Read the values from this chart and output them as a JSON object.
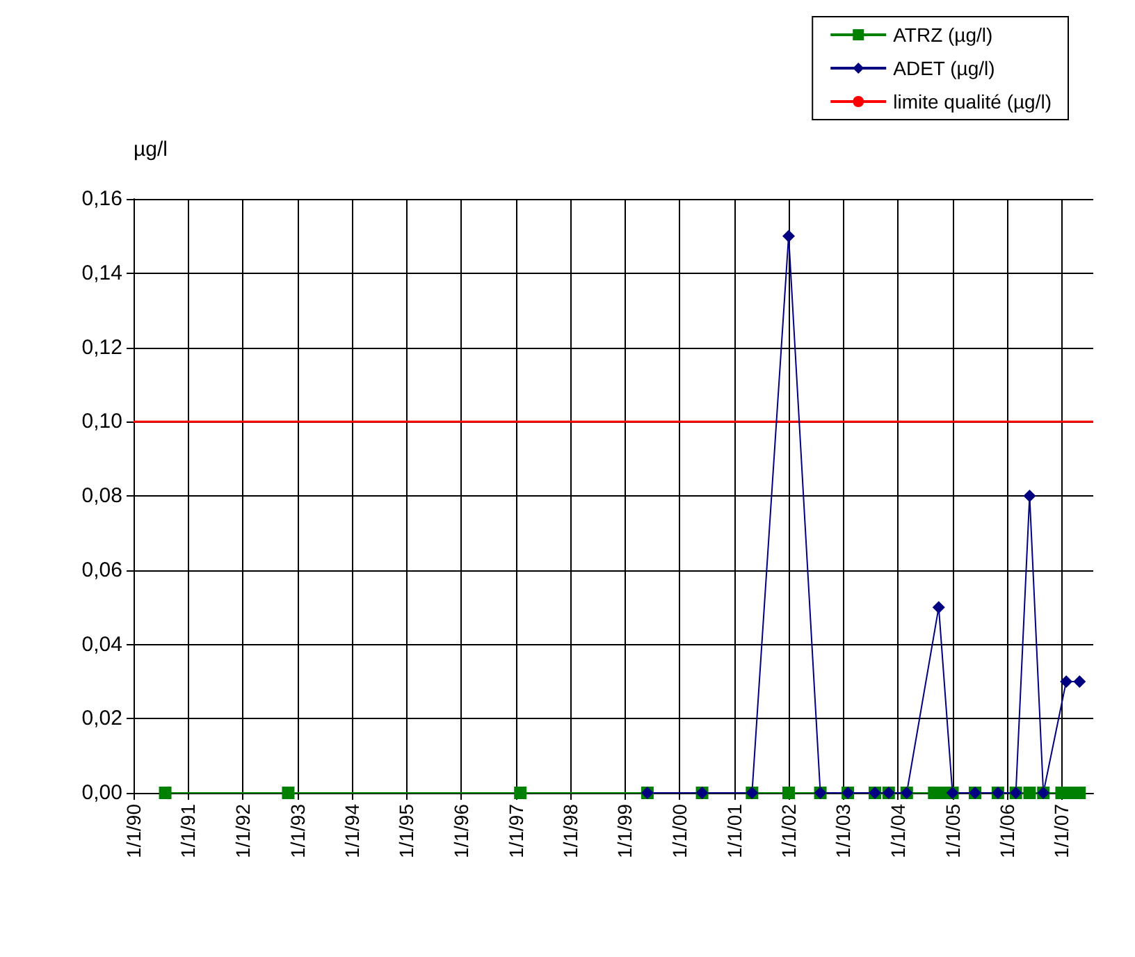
{
  "chart_data": {
    "type": "line",
    "ylabel": "µg/l",
    "xlim": [
      "1990-01-01",
      "2007-08-01"
    ],
    "xticks": [
      {
        "value": "1990-01-01",
        "label": "1/1/90"
      },
      {
        "value": "1991-01-01",
        "label": "1/1/91"
      },
      {
        "value": "1992-01-01",
        "label": "1/1/92"
      },
      {
        "value": "1993-01-01",
        "label": "1/1/93"
      },
      {
        "value": "1994-01-01",
        "label": "1/1/94"
      },
      {
        "value": "1995-01-01",
        "label": "1/1/95"
      },
      {
        "value": "1996-01-01",
        "label": "1/1/96"
      },
      {
        "value": "1997-01-01",
        "label": "1/1/97"
      },
      {
        "value": "1998-01-01",
        "label": "1/1/98"
      },
      {
        "value": "1999-01-01",
        "label": "1/1/99"
      },
      {
        "value": "2000-01-01",
        "label": "1/1/00"
      },
      {
        "value": "2001-01-01",
        "label": "1/1/01"
      },
      {
        "value": "2002-01-01",
        "label": "1/1/02"
      },
      {
        "value": "2003-01-01",
        "label": "1/1/03"
      },
      {
        "value": "2004-01-01",
        "label": "1/1/04"
      },
      {
        "value": "2005-01-01",
        "label": "1/1/05"
      },
      {
        "value": "2006-01-01",
        "label": "1/1/06"
      },
      {
        "value": "2007-01-01",
        "label": "1/1/07"
      }
    ],
    "ylim": [
      0,
      0.16
    ],
    "yticks": [
      {
        "value": 0,
        "label": "0,00"
      },
      {
        "value": 0.02,
        "label": "0,02"
      },
      {
        "value": 0.04,
        "label": "0,04"
      },
      {
        "value": 0.06,
        "label": "0,06"
      },
      {
        "value": 0.08,
        "label": "0,08"
      },
      {
        "value": 0.1,
        "label": "0,10"
      },
      {
        "value": 0.12,
        "label": "0,12"
      },
      {
        "value": 0.14,
        "label": "0,14"
      },
      {
        "value": 0.16,
        "label": "0,16"
      }
    ],
    "grid": true,
    "legend": "top right",
    "series": [
      {
        "name": "ATRZ (µg/l)",
        "color": "#008000",
        "marker": "square",
        "x": [
          "1990-08",
          "1992-11",
          "1997-02",
          "1999-06",
          "2000-06",
          "2001-05",
          "2002-01",
          "2002-08",
          "2003-02",
          "2003-08",
          "2003-11",
          "2004-03",
          "2004-09",
          "2004-11",
          "2005-01",
          "2005-06",
          "2005-11",
          "2006-03",
          "2006-06",
          "2006-09",
          "2007-01",
          "2007-03",
          "2007-05"
        ],
        "values": [
          0,
          0,
          0,
          0,
          0,
          0,
          0,
          0,
          0,
          0,
          0,
          0,
          0,
          0,
          0,
          0,
          0,
          0,
          0,
          0,
          0,
          0,
          0
        ]
      },
      {
        "name": "ADET (µg/l)",
        "color": "#000080",
        "marker": "diamond",
        "x": [
          "1999-06",
          "2000-06",
          "2001-05",
          "2002-01",
          "2002-08",
          "2003-02",
          "2003-08",
          "2003-11",
          "2004-03",
          "2004-10",
          "2005-01",
          "2005-06",
          "2005-11",
          "2006-03",
          "2006-06",
          "2006-09",
          "2007-02",
          "2007-05"
        ],
        "values": [
          0,
          0,
          0,
          0.15,
          0,
          0,
          0,
          0,
          0,
          0.05,
          0,
          0,
          0,
          0,
          0.08,
          0,
          0.03,
          0.03
        ]
      }
    ],
    "ref_lines": [
      {
        "axis": "y",
        "value": 0.1,
        "label": "limite qualité (µg/l)",
        "color": "#ff0000",
        "line_style": "solid"
      }
    ]
  }
}
